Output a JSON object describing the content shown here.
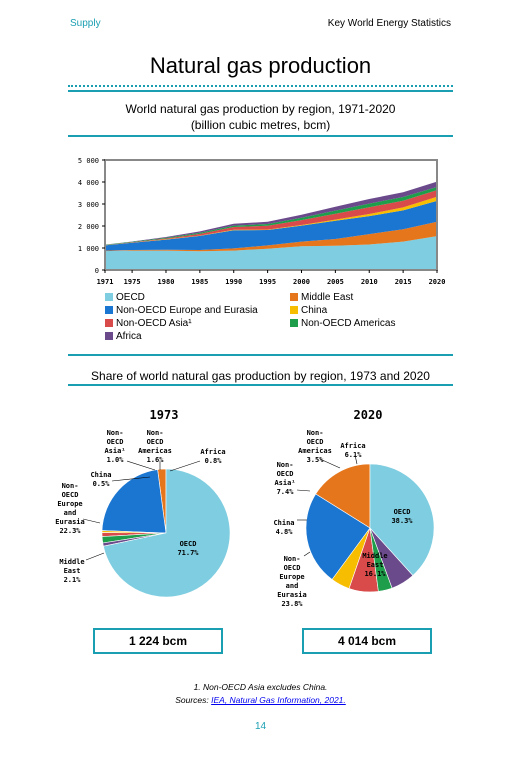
{
  "header": {
    "section": "Supply",
    "publication": "Key World Energy Statistics"
  },
  "title": "Natural gas production",
  "colors": {
    "accent": "#1a9fb2",
    "OECD": "#7ecde0",
    "Middle East": "#e6761c",
    "Non-OECD Europe and Eurasia": "#1b76d1",
    "China": "#f7bd00",
    "Non-OECD Asia": "#d94a4a",
    "Non-OECD Americas": "#1e9e4a",
    "Africa": "#6b4a8c"
  },
  "area_chart": {
    "title_line1": "World natural gas production by region, 1971-2020",
    "title_line2": "(billion cubic metres, bcm)",
    "y_ticks": [
      "0",
      "1 000",
      "2 000",
      "3 000",
      "4 000",
      "5 000"
    ],
    "x_ticks": [
      "1971",
      "1975",
      "1980",
      "1985",
      "1990",
      "1995",
      "2000",
      "2005",
      "2010",
      "2015",
      "2020"
    ],
    "legend": [
      "OECD",
      "Middle East",
      "Non-OECD Europe and Eurasia",
      "China",
      "Non-OECD Asia¹",
      "Non-OECD Americas",
      "Africa"
    ]
  },
  "pie_section": {
    "title": "Share of world natural gas production by region, 1973 and 2020",
    "pie1973": {
      "year": "1973",
      "total": "1 224 bcm",
      "labels": {
        "oecd": [
          "OECD",
          "71.7%"
        ],
        "me": [
          "Middle",
          "East",
          "2.1%"
        ],
        "eur": [
          "Non-",
          "OECD",
          "Europe",
          "and",
          "Eurasia",
          "22.3%"
        ],
        "china": [
          "China",
          "0.5%"
        ],
        "asia": [
          "Non-",
          "OECD",
          "Asia¹",
          "1.0%"
        ],
        "amer": [
          "Non-",
          "OECD",
          "Americas",
          "1.6%"
        ],
        "africa": [
          "Africa",
          "0.8%"
        ]
      }
    },
    "pie2020": {
      "year": "2020",
      "total": "4 014 bcm",
      "labels": {
        "oecd": [
          "OECD",
          "38.3%"
        ],
        "me": [
          "Middle",
          "East",
          "16.1%"
        ],
        "eur": [
          "Non-",
          "OECD",
          "Europe",
          "and",
          "Eurasia",
          "23.8%"
        ],
        "china": [
          "China",
          "4.8%"
        ],
        "asia": [
          "Non-",
          "OECD",
          "Asia¹",
          "7.4%"
        ],
        "amer": [
          "Non-",
          "OECD",
          "Americas",
          "3.5%"
        ],
        "africa": [
          "Africa",
          "6.1%"
        ]
      }
    }
  },
  "chart_data": [
    {
      "type": "area",
      "title": "World natural gas production by region, 1971-2020",
      "subtitle": "(billion cubic metres, bcm)",
      "xlabel": "",
      "ylabel": "",
      "x": [
        1971,
        1975,
        1980,
        1985,
        1990,
        1995,
        2000,
        2005,
        2010,
        2015,
        2020
      ],
      "ylim": [
        0,
        5000
      ],
      "stacked": true,
      "grid": false,
      "legend_placement": "bottom",
      "series": [
        {
          "name": "OECD",
          "values": [
            860,
            880,
            880,
            850,
            880,
            970,
            1080,
            1100,
            1160,
            1290,
            1540
          ]
        },
        {
          "name": "Middle East",
          "values": [
            20,
            30,
            40,
            60,
            100,
            150,
            210,
            310,
            470,
            560,
            650
          ]
        },
        {
          "name": "Non-OECD Europe and Eurasia",
          "values": [
            240,
            330,
            460,
            640,
            830,
            700,
            730,
            830,
            820,
            860,
            950
          ]
        },
        {
          "name": "China",
          "values": [
            5,
            7,
            14,
            13,
            15,
            18,
            27,
            49,
            96,
            135,
            194
          ]
        },
        {
          "name": "Non-OECD Asia¹",
          "values": [
            5,
            15,
            40,
            80,
            130,
            170,
            220,
            270,
            310,
            300,
            300
          ]
        },
        {
          "name": "Non-OECD Americas",
          "values": [
            20,
            25,
            35,
            50,
            65,
            85,
            110,
            140,
            160,
            175,
            140
          ]
        },
        {
          "name": "Africa",
          "values": [
            5,
            10,
            30,
            60,
            80,
            100,
            130,
            180,
            210,
            210,
            245
          ]
        }
      ]
    },
    {
      "type": "pie",
      "title": "1973",
      "categories": [
        "OECD",
        "Middle East",
        "Non-OECD Europe and Eurasia",
        "China",
        "Non-OECD Asia¹",
        "Non-OECD Americas",
        "Africa"
      ],
      "values": [
        71.7,
        2.1,
        22.3,
        0.5,
        1.0,
        1.6,
        0.8
      ],
      "total_label": "1 224 bcm"
    },
    {
      "type": "pie",
      "title": "2020",
      "categories": [
        "OECD",
        "Middle East",
        "Non-OECD Europe and Eurasia",
        "China",
        "Non-OECD Asia¹",
        "Non-OECD Americas",
        "Africa"
      ],
      "values": [
        38.3,
        16.1,
        23.8,
        4.8,
        7.4,
        3.5,
        6.1
      ],
      "total_label": "4 014 bcm"
    }
  ],
  "footnote": "1. Non-OECD Asia excludes China.",
  "sources_prefix": "Sources: ",
  "sources_link": "IEA, Natural Gas Information, 2021.",
  "page_number": "14"
}
